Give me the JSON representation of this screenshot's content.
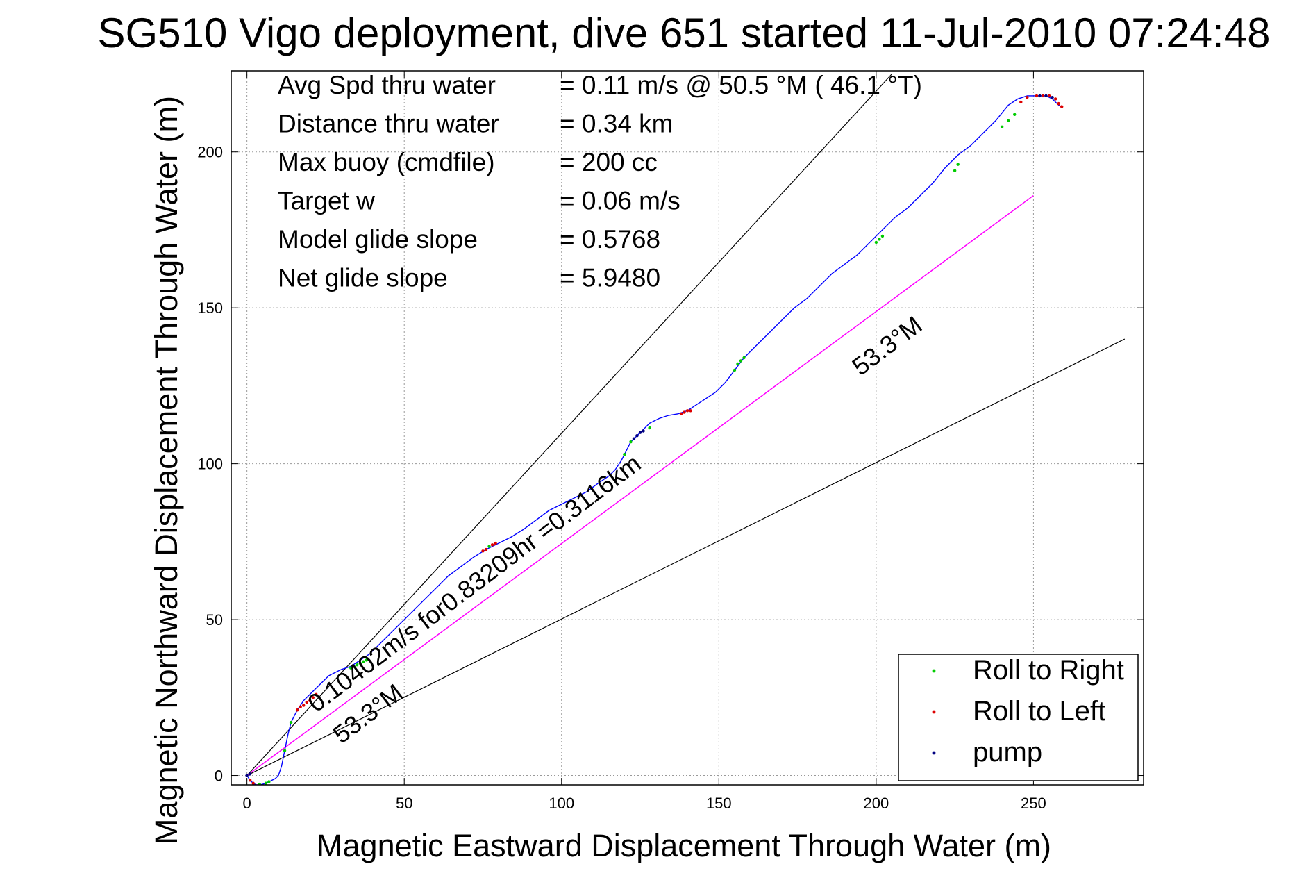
{
  "chart_data": {
    "type": "scatter",
    "title": "SG510 Vigo deployment, dive 651 started 11-Jul-2010 07:24:48",
    "xlabel": "Magnetic Eastward Displacement Through Water (m)",
    "ylabel": "Magnetic Northward Displacement Through Water (m)",
    "xlim": [
      -5,
      285
    ],
    "ylim": [
      -3,
      226
    ],
    "xticks": [
      0,
      50,
      100,
      150,
      200,
      250
    ],
    "yticks": [
      0,
      50,
      100,
      150,
      200
    ],
    "grid": true,
    "stats": [
      {
        "label": "Avg Spd thru water",
        "value": "=  0.11 m/s @  50.5 °M ( 46.1 °T)"
      },
      {
        "label": "Distance thru water",
        "value": "=  0.34 km"
      },
      {
        "label": "Max buoy (cmdfile)",
        "value": "= 200 cc"
      },
      {
        "label": "Target w",
        "value": "= 0.06 m/s"
      },
      {
        "label": "Model glide slope",
        "value": "= 0.5768"
      },
      {
        "label": "Net glide slope",
        "value": "= 5.9480"
      }
    ],
    "annotations": [
      {
        "text": "0.10402m/s for0.83209hr =0.3116km",
        "x": 22,
        "y": 20,
        "rotation_deg": -37
      },
      {
        "text": "53.3°M",
        "x": 30,
        "y": 10,
        "rotation_deg": -37
      },
      {
        "text": "53.3°M",
        "x": 195,
        "y": 128,
        "rotation_deg": -37
      }
    ],
    "reference_lines": [
      {
        "name": "upper bound",
        "x": [
          0,
          205
        ],
        "y": [
          0,
          225
        ]
      },
      {
        "name": "lower bound",
        "x": [
          0,
          279
        ],
        "y": [
          0,
          140
        ]
      },
      {
        "name": "heading line 53.3°M",
        "x": [
          0,
          250
        ],
        "y": [
          0,
          186
        ]
      }
    ],
    "track": {
      "name": "glider track",
      "x": [
        0,
        1,
        2,
        3,
        4,
        5,
        6,
        7,
        8,
        9,
        10,
        11,
        12,
        13,
        14,
        15,
        16,
        17,
        18,
        19,
        20,
        22,
        24,
        26,
        28,
        30,
        33,
        36,
        39,
        42,
        45,
        48,
        52,
        56,
        60,
        64,
        68,
        72,
        76,
        80,
        84,
        88,
        92,
        96,
        100,
        104,
        108,
        112,
        115,
        117,
        119,
        120,
        121,
        122,
        124,
        126,
        128,
        131,
        134,
        137,
        140,
        143,
        146,
        149,
        152,
        155,
        158,
        162,
        166,
        170,
        174,
        178,
        182,
        186,
        190,
        194,
        198,
        202,
        206,
        210,
        214,
        218,
        222,
        226,
        230,
        234,
        238,
        242,
        245,
        248,
        250,
        252,
        254,
        256,
        258,
        259
      ],
      "y": [
        0,
        -1.5,
        -2.5,
        -3,
        -3,
        -2.8,
        -2.5,
        -2,
        -1.5,
        -1,
        0,
        3,
        8,
        13,
        17,
        19,
        21,
        22.5,
        24,
        25,
        26,
        28,
        30,
        32,
        33,
        34,
        35,
        37,
        39,
        42,
        45,
        48,
        52,
        56,
        60,
        64,
        67,
        70,
        72.5,
        74.5,
        76.5,
        79,
        82,
        85,
        87,
        89,
        91,
        94,
        96,
        98,
        101,
        103,
        105,
        107,
        109,
        111,
        113,
        114.5,
        115.5,
        116,
        117,
        119,
        121,
        123,
        126,
        130,
        134,
        138,
        142,
        146,
        150,
        153,
        157,
        161,
        164,
        167,
        171,
        175,
        179,
        182,
        186,
        190,
        195,
        199,
        202,
        206,
        210,
        215,
        217,
        218,
        218,
        218,
        218,
        217,
        215,
        214.5
      ]
    },
    "series": [
      {
        "name": "Roll to Right",
        "color": "#00cc00",
        "marker": "dot",
        "x": [
          4,
          6,
          7,
          12,
          14,
          33,
          34,
          35,
          36,
          37,
          38,
          77,
          120,
          122,
          128,
          155,
          156,
          157,
          158,
          200,
          201,
          202,
          225,
          226,
          240,
          242,
          244
        ],
        "y": [
          -2.8,
          -2.5,
          -2,
          8,
          17,
          34.5,
          35,
          35.5,
          36,
          36.5,
          37,
          73.5,
          103,
          107,
          111.5,
          130,
          132,
          133,
          134,
          171,
          172,
          173,
          194,
          196,
          208,
          210,
          212
        ]
      },
      {
        "name": "Roll to Left",
        "color": "#dd0000",
        "marker": "dot",
        "x": [
          1,
          2,
          16,
          17,
          18,
          19,
          20,
          21,
          22,
          75,
          76,
          78,
          79,
          138,
          139,
          140,
          141,
          246,
          248,
          251,
          253,
          255,
          257,
          258,
          259
        ],
        "y": [
          -1.5,
          -2.5,
          21,
          22,
          22.5,
          23.5,
          24,
          25,
          26,
          72,
          72.5,
          74,
          74.5,
          116,
          116.5,
          117,
          117,
          216,
          217.5,
          218,
          218,
          218,
          217,
          215.5,
          214.5
        ]
      },
      {
        "name": "pump",
        "color": "#000080",
        "marker": "dot",
        "x": [
          0,
          1,
          123,
          124,
          125,
          126,
          252,
          254,
          256
        ],
        "y": [
          0,
          0.5,
          108,
          109,
          110,
          110.5,
          218,
          218,
          217.5
        ]
      }
    ],
    "legend": {
      "position": "bottom-right",
      "entries": [
        "Roll to Right",
        "Roll to Left",
        "pump"
      ]
    },
    "colors": {
      "track": "#0000ff",
      "heading_line": "#ff00ff",
      "reference": "#000000",
      "grid": "#999999"
    }
  }
}
